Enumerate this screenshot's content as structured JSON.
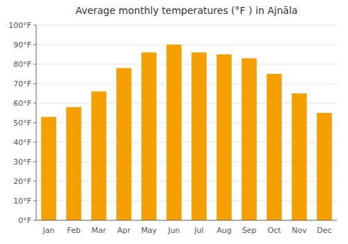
{
  "chart_data": {
    "type": "bar",
    "title": "Average monthly temperatures (°F ) in Ajnāla",
    "categories": [
      "Jan",
      "Feb",
      "Mar",
      "Apr",
      "May",
      "Jun",
      "Jul",
      "Aug",
      "Sep",
      "Oct",
      "Nov",
      "Dec"
    ],
    "values": [
      53,
      58,
      66,
      78,
      86,
      90,
      86,
      85,
      83,
      75,
      65,
      55
    ],
    "color": "#F5A000",
    "ylim": [
      0,
      100
    ],
    "yticks": [
      {
        "value": 0,
        "label": "0°F"
      },
      {
        "value": 10,
        "label": "10°F"
      },
      {
        "value": 20,
        "label": "20°F"
      },
      {
        "value": 30,
        "label": "30°F"
      },
      {
        "value": 40,
        "label": "40°F"
      },
      {
        "value": 50,
        "label": "50°F"
      },
      {
        "value": 60,
        "label": "60°F"
      },
      {
        "value": 70,
        "label": "70°F"
      },
      {
        "value": 80,
        "label": "80°F"
      },
      {
        "value": 90,
        "label": "90°F"
      },
      {
        "value": 100,
        "label": "100°F"
      }
    ],
    "grid": true
  }
}
